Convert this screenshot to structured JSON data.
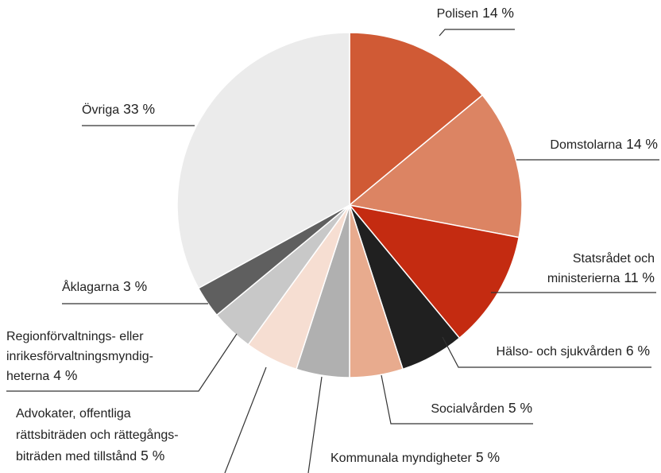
{
  "chart_data": {
    "type": "pie",
    "categories": [
      [
        "Polisen"
      ],
      [
        "Domstolarna"
      ],
      [
        "Statsrådet och",
        "ministerierna"
      ],
      [
        "Hälso- och sjukvården"
      ],
      [
        "Socialvården"
      ],
      [
        "Kommunala myndigheter"
      ],
      [
        "Advokater, offentliga",
        "rättsbiträden och rättegångs-",
        "biträden med tillstånd"
      ],
      [
        "Regionförvaltnings- eller",
        "inrikesförvaltningsmyndig-",
        "heterna"
      ],
      [
        "Åklagarna"
      ],
      [
        "Övriga"
      ]
    ],
    "values": [
      14,
      14,
      11,
      6,
      5,
      5,
      5,
      4,
      3,
      33
    ],
    "value_labels": [
      "14 %",
      "14 %",
      "11 %",
      "6 %",
      "5 %",
      "5 %",
      "5 %",
      "4 %",
      "3 %",
      "33 %"
    ],
    "colors": [
      "#d05a35",
      "#dc8463",
      "#c42b11",
      "#202020",
      "#e8ab8e",
      "#b0b0b0",
      "#f6ded2",
      "#c8c8c8",
      "#5f5f5f",
      "#ebebeb"
    ]
  }
}
